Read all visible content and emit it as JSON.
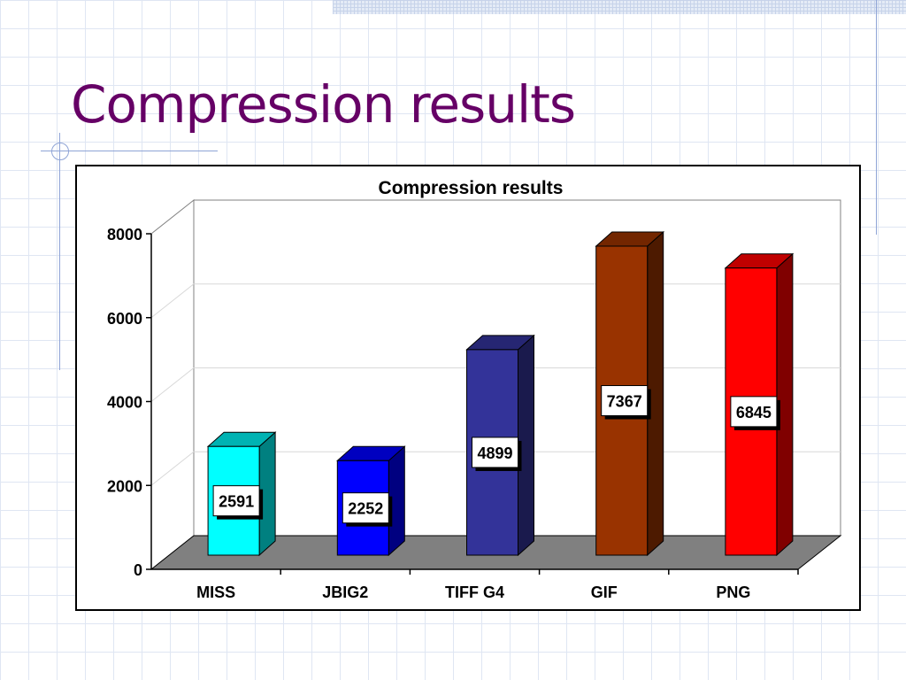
{
  "slide": {
    "title": "Compression results"
  },
  "chart_data": {
    "type": "bar",
    "title": "Compression results",
    "xlabel": "",
    "ylabel": "",
    "categories": [
      "MISS",
      "JBIG2",
      "TIFF G4",
      "GIF",
      "PNG"
    ],
    "values": [
      2591,
      2252,
      4899,
      7367,
      6845
    ],
    "data_labels": [
      "2591",
      "2252",
      "4899",
      "7367",
      "6845"
    ],
    "ylim": [
      0,
      8000
    ],
    "yticks": [
      "0",
      "2000",
      "4000",
      "6000",
      "8000"
    ],
    "grid": true,
    "legend": "none",
    "three_d": true,
    "colors": [
      {
        "front": "#00ffff",
        "side": "#008080",
        "top": "#00b3b3"
      },
      {
        "front": "#0000ff",
        "side": "#000080",
        "top": "#0000c0"
      },
      {
        "front": "#333399",
        "side": "#1a1a4d",
        "top": "#262673"
      },
      {
        "front": "#993300",
        "side": "#4d1a00",
        "top": "#732600"
      },
      {
        "front": "#ff0000",
        "side": "#800000",
        "top": "#c00000"
      }
    ],
    "floor_color": "#808080"
  }
}
